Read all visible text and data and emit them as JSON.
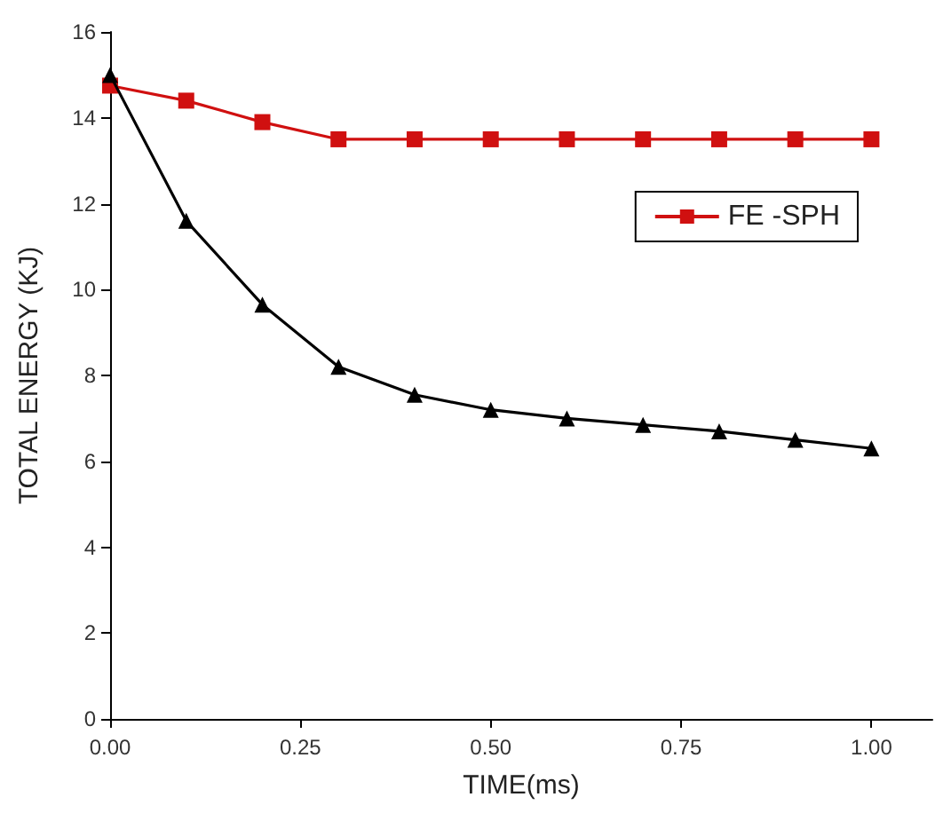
{
  "chart_data": {
    "type": "line",
    "xlabel": "TIME(ms)",
    "ylabel": "TOTAL ENERGY (KJ)",
    "x": [
      0,
      0.1,
      0.2,
      0.3,
      0.4,
      0.5,
      0.6,
      0.7,
      0.8,
      0.9,
      1.0
    ],
    "series": [
      {
        "color": "#000000",
        "marker": "triangle",
        "values": [
          15.0,
          11.6,
          9.65,
          8.2,
          7.55,
          7.2,
          7.0,
          6.85,
          6.7,
          6.5,
          6.3
        ]
      },
      {
        "name": "FE -SPH",
        "color": "#d01010",
        "marker": "square",
        "values": [
          14.75,
          14.4,
          13.9,
          13.5,
          13.5,
          13.5,
          13.5,
          13.5,
          13.5,
          13.5,
          13.5
        ]
      }
    ],
    "xlim": [
      0,
      1.08
    ],
    "xticks": [
      {
        "value": 0,
        "label": "0.00"
      },
      {
        "value": 0.25,
        "label": "0.25"
      },
      {
        "value": 0.5,
        "label": "0.50"
      },
      {
        "value": 0.75,
        "label": "0.75"
      },
      {
        "value": 1,
        "label": "1.00"
      }
    ],
    "ylim": [
      0,
      16
    ],
    "yticks": [
      0,
      2,
      4,
      6,
      8,
      10,
      12,
      14,
      16
    ],
    "grid": false,
    "legend": "top right"
  }
}
